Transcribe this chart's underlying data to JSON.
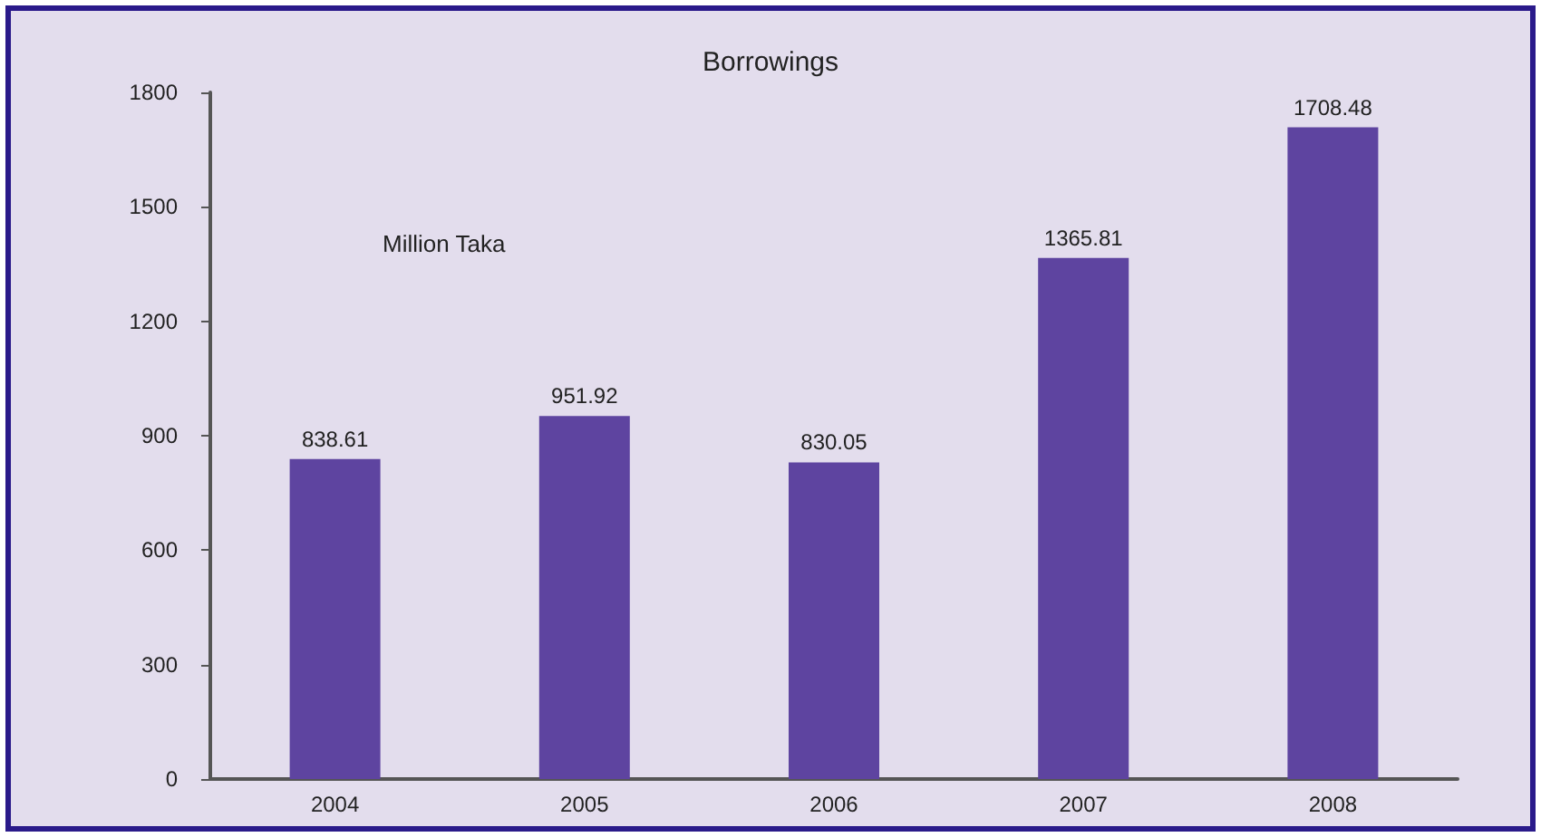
{
  "chart_data": {
    "type": "bar",
    "title": "Borrowings",
    "categories": [
      "2004",
      "2005",
      "2006",
      "2007",
      "2008"
    ],
    "values": [
      838.61,
      951.92,
      830.05,
      1365.81,
      1708.48
    ],
    "color": "#5e44a0",
    "ylim": [
      0,
      1800
    ],
    "yticks": [
      0,
      300,
      600,
      900,
      1200,
      1500,
      1800
    ],
    "data_labels": true,
    "grid": false,
    "annotations": [
      "Million Taka"
    ]
  }
}
